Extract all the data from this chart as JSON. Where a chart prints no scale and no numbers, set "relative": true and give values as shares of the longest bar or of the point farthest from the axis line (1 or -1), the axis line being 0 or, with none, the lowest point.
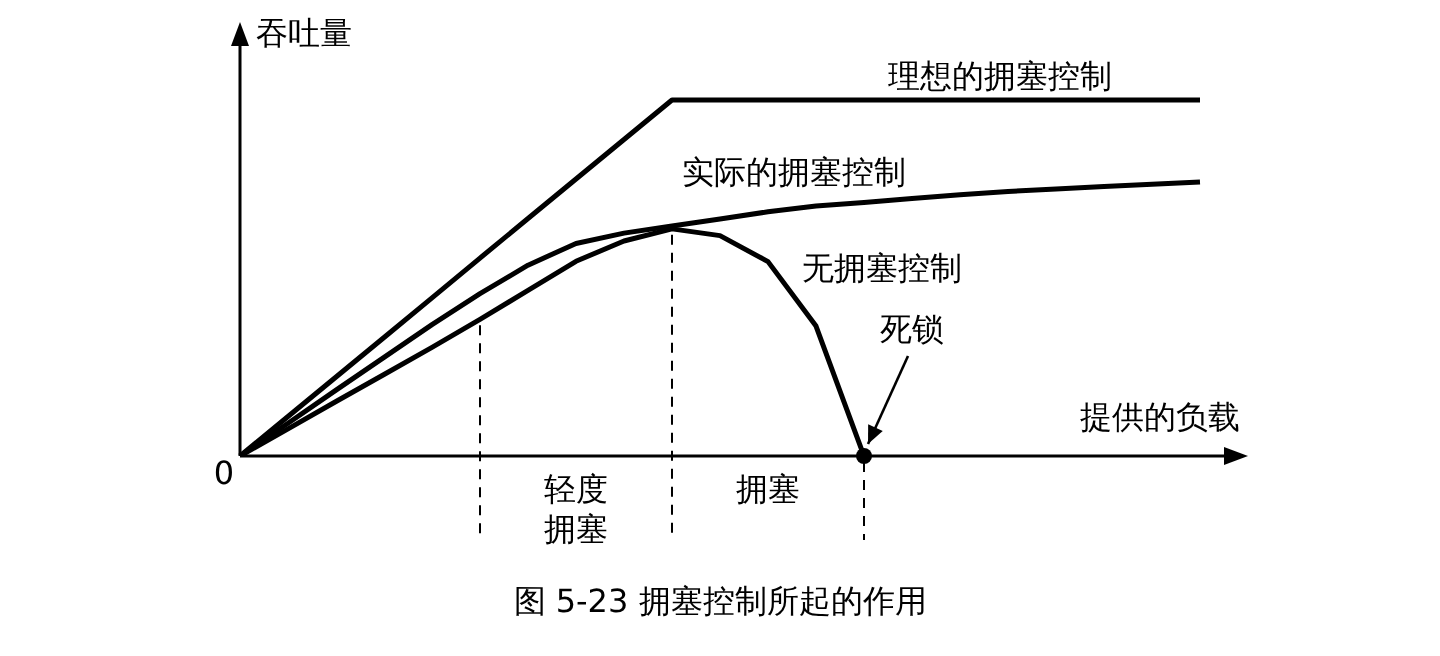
{
  "chart_data": {
    "type": "line",
    "title": "图 5-23 拥塞控制所起的作用",
    "ylabel": "吞吐量",
    "xlabel": "提供的负载",
    "relative": true,
    "legend": false,
    "marker": "none",
    "line_style": "solid",
    "categories": [
      null,
      null,
      null,
      null,
      null,
      null,
      null,
      null,
      null,
      null,
      null,
      null,
      null,
      null,
      null,
      null,
      null,
      null,
      null,
      null,
      null
    ],
    "series": [
      {
        "name": "理想的拥塞控制",
        "color": "#000000",
        "values": [
          0,
          0.111,
          0.222,
          0.333,
          0.444,
          0.556,
          0.667,
          0.778,
          0.889,
          1,
          1,
          1,
          1,
          1,
          1,
          1,
          1,
          1,
          1,
          1,
          1
        ]
      },
      {
        "name": "实际的拥塞控制",
        "color": "#000000",
        "values": [
          0,
          0.092,
          0.185,
          0.277,
          0.369,
          0.456,
          0.536,
          0.597,
          0.626,
          0.646,
          0.666,
          0.686,
          0.702,
          0.712,
          0.723,
          0.734,
          0.743,
          0.75,
          0.757,
          0.763,
          0.77
        ]
      },
      {
        "name": "无拥塞控制",
        "color": "#000000",
        "values": [
          0,
          0.076,
          0.153,
          0.229,
          0.305,
          0.384,
          0.465,
          0.547,
          0.604,
          0.638,
          0.619,
          0.546,
          0.365,
          0,
          null,
          null,
          null,
          null,
          null,
          null,
          null
        ]
      }
    ],
    "annotations": [
      "0",
      "轻度",
      "拥塞",
      "拥塞",
      "死锁"
    ]
  }
}
